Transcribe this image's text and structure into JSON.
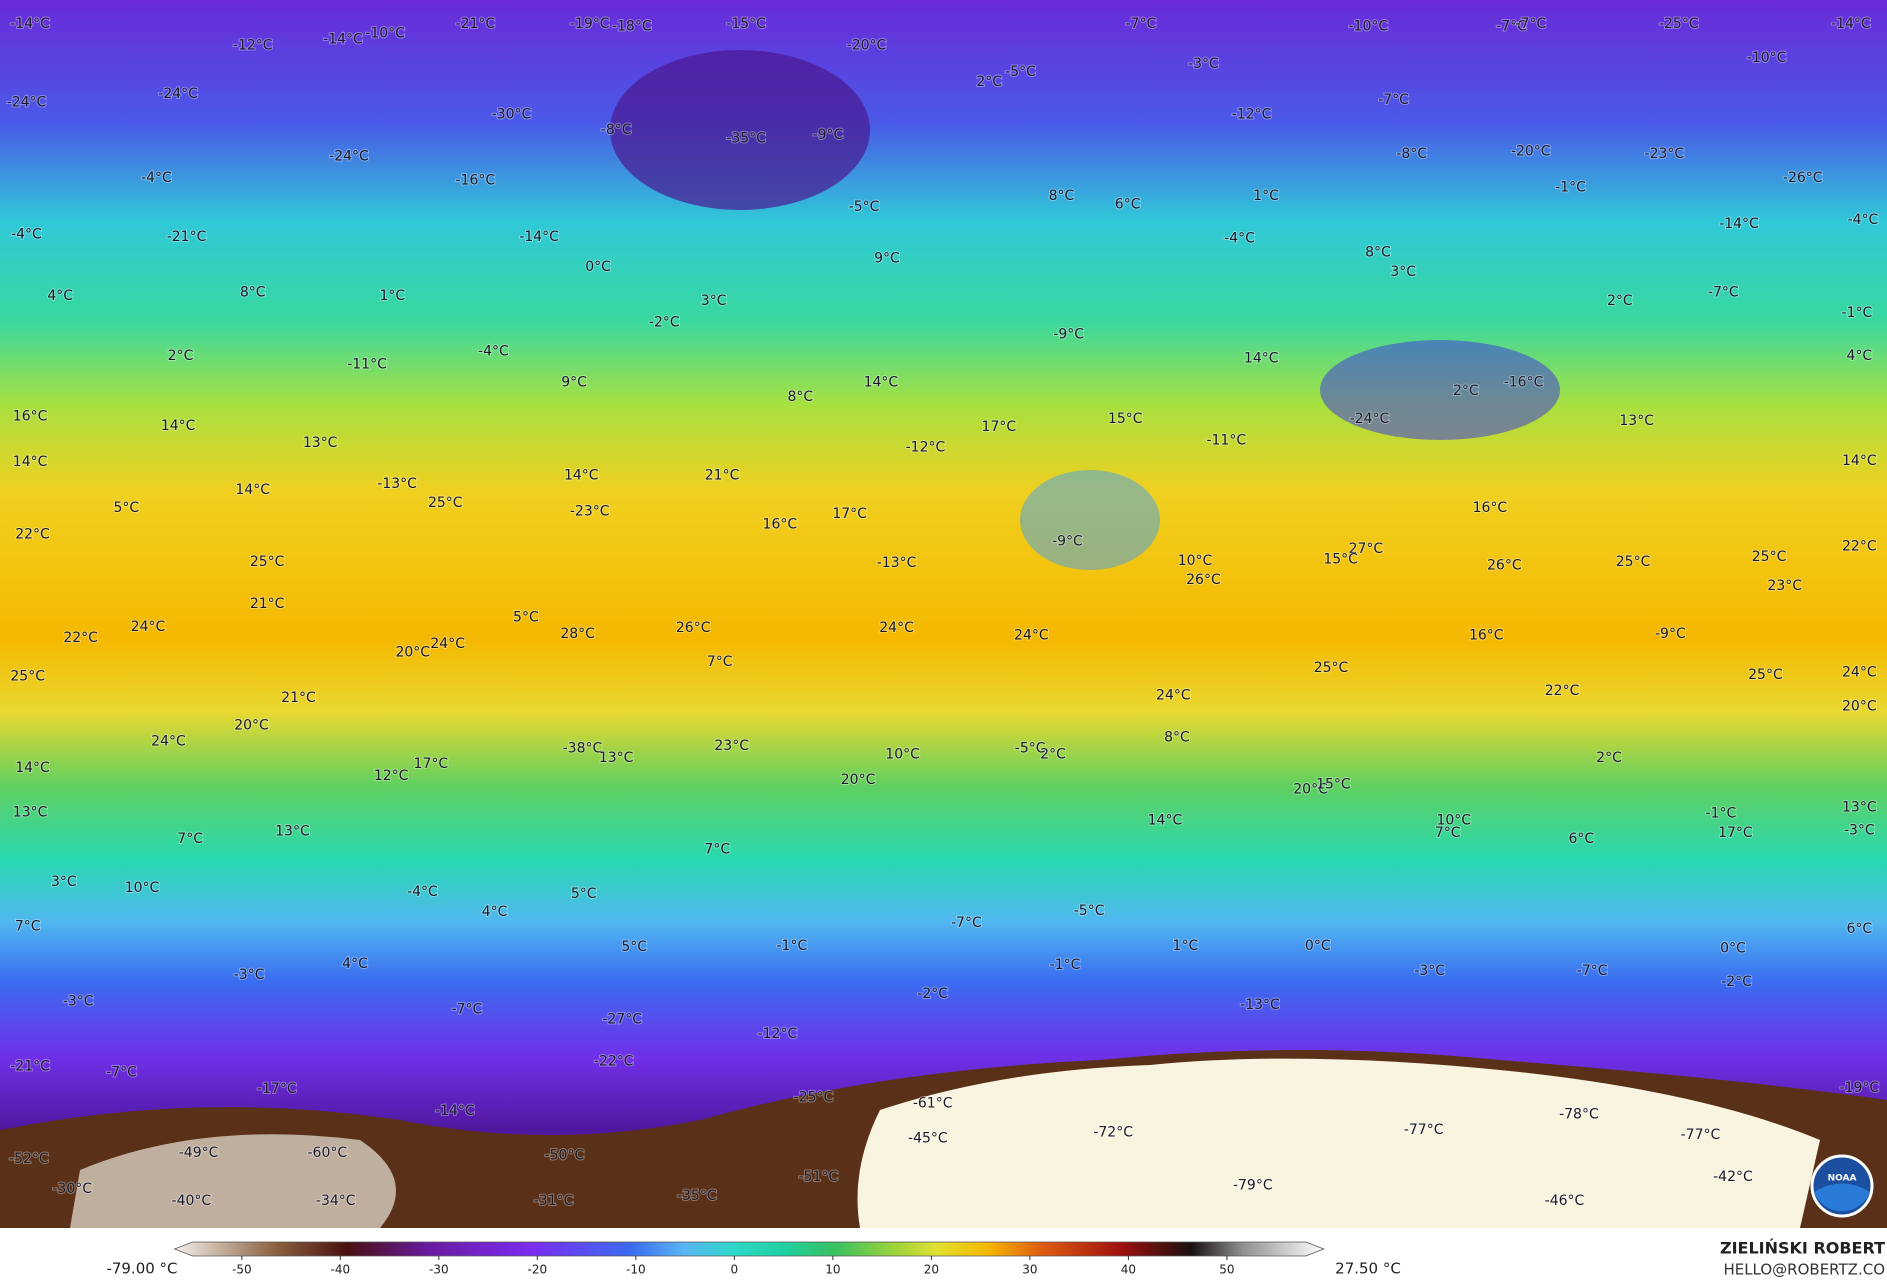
{
  "map": {
    "labels": [
      "-14°C",
      "-12°C",
      "-21°C",
      "-14°C",
      "-10°C",
      "-19°C",
      "-18°C",
      "-15°C",
      "-20°C",
      "-7°C",
      "-10°C",
      "-7°C",
      "-7°C",
      "-25°C",
      "-14°C",
      "-10°C",
      "-24°C",
      "-24°C",
      "-30°C",
      "-8°C",
      "-35°C",
      "-9°C",
      "2°C",
      "-5°C",
      "-3°C",
      "-7°C",
      "-12°C",
      "-8°C",
      "-20°C",
      "-23°C",
      "-26°C",
      "-24°C",
      "-16°C",
      "-4°C",
      "-1°C",
      "1°C",
      "6°C",
      "8°C",
      "-5°C",
      "-14°C",
      "-4°C",
      "-4°C",
      "-21°C",
      "-14°C",
      "0°C",
      "9°C",
      "-4°C",
      "8°C",
      "3°C",
      "4°C",
      "8°C",
      "1°C",
      "3°C",
      "-7°C",
      "2°C",
      "-1°C",
      "2°C",
      "-11°C",
      "-4°C",
      "-2°C",
      "9°C",
      "-9°C",
      "14°C",
      "4°C",
      "8°C",
      "14°C",
      "2°C",
      "-16°C",
      "16°C",
      "14°C",
      "-24°C",
      "13°C",
      "17°C",
      "15°C",
      "13°C",
      "-12°C",
      "-11°C",
      "14°C",
      "14°C",
      "14°C",
      "21°C",
      "-13°C",
      "14°C",
      "25°C",
      "5°C",
      "-23°C",
      "17°C",
      "16°C",
      "16°C",
      "22°C",
      "-9°C",
      "27°C",
      "22°C",
      "10°C",
      "15°C",
      "25°C",
      "26°C",
      "25°C",
      "25°C",
      "-13°C",
      "26°C",
      "23°C",
      "21°C",
      "5°C",
      "28°C",
      "26°C",
      "24°C",
      "24°C",
      "24°C",
      "22°C",
      "16°C",
      "-9°C",
      "20°C",
      "24°C",
      "7°C",
      "25°C",
      "25°C",
      "24°C",
      "25°C",
      "22°C",
      "21°C",
      "24°C",
      "20°C",
      "20°C",
      "24°C",
      "8°C",
      "23°C",
      "-38°C",
      "13°C",
      "-5°C",
      "2°C",
      "10°C",
      "2°C",
      "14°C",
      "17°C",
      "12°C",
      "20°C",
      "20°C",
      "15°C",
      "13°C",
      "13°C",
      "-3°C",
      "-1°C",
      "17°C",
      "14°C",
      "10°C",
      "7°C",
      "6°C",
      "13°C",
      "7°C",
      "7°C",
      "3°C",
      "10°C",
      "-4°C",
      "5°C",
      "4°C",
      "-5°C",
      "-7°C",
      "7°C",
      "6°C",
      "5°C",
      "-1°C",
      "1°C",
      "0°C",
      "0°C",
      "4°C",
      "-1°C",
      "-3°C",
      "-7°C",
      "-3°C",
      "-2°C",
      "-2°C",
      "-3°C",
      "-7°C",
      "-13°C",
      "-27°C",
      "-12°C",
      "-21°C",
      "-7°C",
      "-22°C",
      "-17°C",
      "-25°C",
      "-14°C",
      "-61°C",
      "-19°C",
      "-78°C",
      "-72°C",
      "-77°C",
      "-77°C",
      "-45°C",
      "-60°C",
      "-49°C",
      "-50°C",
      "-52°C",
      "-42°C",
      "-79°C",
      "-30°C",
      "-51°C",
      "-40°C",
      "-34°C",
      "-31°C",
      "-35°C",
      "-46°C"
    ]
  },
  "colorbar": {
    "lim": [
      -55,
      58
    ],
    "ticks": [
      -50,
      -40,
      -30,
      -20,
      -10,
      0,
      10,
      20,
      30,
      40,
      50
    ],
    "min_label": "-79.00 °C",
    "max_label": "27.50 °C"
  },
  "credits": {
    "name": "ZIELIŃSKI ROBERT",
    "email": "HELLO@ROBERTZ.CO"
  },
  "logo": "NOAA"
}
